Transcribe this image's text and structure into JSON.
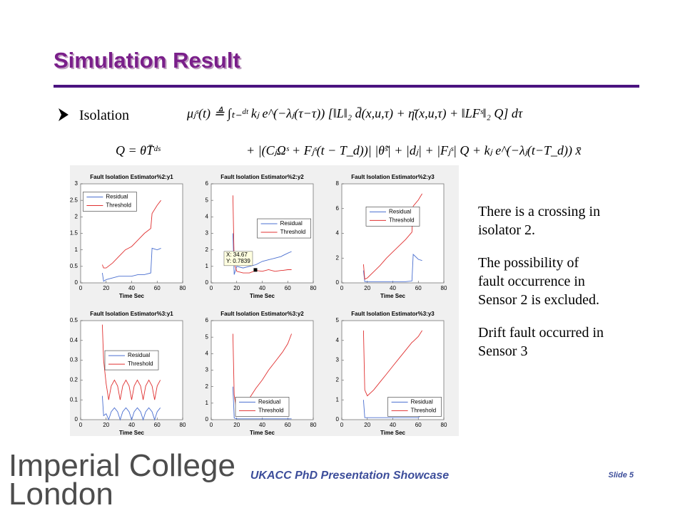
{
  "header": {
    "title": "Simulation Result"
  },
  "bullet": "Isolation",
  "equations": {
    "line1": "μⱼˢ(t) ≜ ∫ₜ₋ᵈᵗ kⱼ e^(−λⱼ(τ−τ)) [‖L‖₂ d̄(x,u,τ) + η̄(x,u,τ) + ‖LFˢ‖₂ Q] dτ",
    "q": "Q = θT̄ᵈˢ",
    "line2": "+ |(CⱼΩˢ + Fⱼˢ(t − T_d))| |θ̃ˢ| + |dⱼ| + |Fⱼˢ| Q + kⱼ e^(−λⱼ(t−T_d)) x̄"
  },
  "notes": [
    [
      "There is a crossing in",
      "isolator 2."
    ],
    [
      "The possibility of",
      "fault occurrence in",
      "Sensor 2 is excluded."
    ],
    [
      "Drift fault occurred in",
      "Sensor 3"
    ]
  ],
  "footer": {
    "logo_line1": "Imperial College",
    "logo_line2": "London",
    "showcase": "UKACC PhD Presentation Showcase",
    "slide": "Slide 5"
  },
  "chart_data": [
    {
      "type": "line",
      "title": "Fault Isolation Estimator%2:y1",
      "x_label": "Time Sec",
      "x": [
        17,
        18,
        20,
        25,
        30,
        35,
        40,
        45,
        50,
        55,
        56,
        60,
        63
      ],
      "series": [
        {
          "name": "Residual",
          "color": "#4a6fd0",
          "values": [
            0.3,
            0.05,
            0.1,
            0.15,
            0.2,
            0.2,
            0.2,
            0.25,
            0.25,
            0.3,
            1.05,
            1.0,
            1.05
          ]
        },
        {
          "name": "Threshold",
          "color": "#e03030",
          "values": [
            0.55,
            0.45,
            0.45,
            0.6,
            0.8,
            1.0,
            1.1,
            1.3,
            1.5,
            1.65,
            2.1,
            2.35,
            2.5
          ]
        }
      ],
      "xlim": [
        0,
        80
      ],
      "xticks": [
        0,
        20,
        40,
        60,
        80
      ],
      "ylim": [
        0,
        3
      ],
      "yticks": [
        0,
        0.5,
        1,
        1.5,
        2,
        2.5,
        3
      ],
      "legend": "upper-left"
    },
    {
      "type": "line",
      "title": "Fault Isolation Estimator%2:y2",
      "x_label": "Time Sec",
      "x": [
        17,
        18,
        20,
        25,
        30,
        35,
        40,
        45,
        50,
        55,
        56,
        60,
        63
      ],
      "series": [
        {
          "name": "Residual",
          "color": "#4a6fd0",
          "values": [
            3,
            0.5,
            1.0,
            0.9,
            1.0,
            1.1,
            1.3,
            1.4,
            1.5,
            1.6,
            1.65,
            1.8,
            1.9
          ]
        },
        {
          "name": "Threshold",
          "color": "#e03030",
          "values": [
            5.3,
            1.2,
            0.7,
            0.6,
            0.6,
            0.75,
            0.7,
            0.8,
            0.7,
            0.75,
            0.75,
            0.8,
            0.8
          ]
        }
      ],
      "annotation": {
        "x": 34.67,
        "y": 0.7839,
        "label_x": "X: 34.67",
        "label_y": "Y: 0.7839"
      },
      "xlim": [
        0,
        80
      ],
      "xticks": [
        0,
        20,
        40,
        60,
        80
      ],
      "ylim": [
        0,
        6
      ],
      "yticks": [
        0,
        1,
        2,
        3,
        4,
        5,
        6
      ],
      "legend": "center-right"
    },
    {
      "type": "line",
      "title": "Fault Isolation Estimator%2:y3",
      "x_label": "Time Sec",
      "x": [
        17,
        18,
        20,
        25,
        30,
        35,
        40,
        45,
        50,
        55,
        56,
        60,
        63
      ],
      "series": [
        {
          "name": "Residual",
          "color": "#4a6fd0",
          "values": [
            1,
            0.1,
            0.1,
            0.1,
            0.1,
            0.1,
            0.1,
            0.1,
            0.1,
            0.15,
            2.3,
            1.9,
            1.8
          ]
        },
        {
          "name": "Threshold",
          "color": "#e03030",
          "values": [
            1.5,
            0.3,
            0.4,
            0.9,
            1.4,
            2.0,
            2.5,
            3.0,
            3.5,
            4.1,
            6.2,
            6.7,
            7.2
          ]
        }
      ],
      "xlim": [
        0,
        80
      ],
      "xticks": [
        0,
        20,
        40,
        60,
        80
      ],
      "ylim": [
        0,
        8
      ],
      "yticks": [
        0,
        2,
        4,
        6,
        8
      ],
      "legend": "upper-center"
    },
    {
      "type": "line",
      "title": "Fault Isolation Estimator%3:y1",
      "x_label": "Time Sec",
      "x": [
        17,
        18,
        20,
        22,
        24,
        26.5,
        29,
        31,
        33,
        35.5,
        38,
        40,
        42,
        44.5,
        47,
        49,
        51,
        53.5,
        56,
        58,
        60,
        62.5
      ],
      "series": [
        {
          "name": "Residual",
          "color": "#4a6fd0",
          "values": [
            0.12,
            0.02,
            0.03,
            0,
            0.04,
            0.06,
            0.04,
            0,
            0.04,
            0.06,
            0.04,
            0,
            0.04,
            0.06,
            0.04,
            0,
            0.04,
            0.06,
            0.04,
            0,
            0.04,
            0.06
          ]
        },
        {
          "name": "Threshold",
          "color": "#e03030",
          "values": [
            0.48,
            0.3,
            0.18,
            0.1,
            0.17,
            0.2,
            0.17,
            0.1,
            0.17,
            0.2,
            0.17,
            0.1,
            0.17,
            0.2,
            0.17,
            0.1,
            0.17,
            0.2,
            0.17,
            0.1,
            0.17,
            0.2
          ]
        }
      ],
      "xlim": [
        0,
        80
      ],
      "xticks": [
        0,
        20,
        40,
        60,
        80
      ],
      "ylim": [
        0,
        0.5
      ],
      "yticks": [
        0,
        0.1,
        0.2,
        0.3,
        0.4,
        0.5
      ],
      "legend": "center"
    },
    {
      "type": "line",
      "title": "Fault Isolation Estimator%3:y2",
      "x_label": "Time Sec",
      "x": [
        17,
        18,
        20,
        25,
        30,
        35,
        40,
        45,
        50,
        55,
        56,
        60,
        63
      ],
      "series": [
        {
          "name": "Residual",
          "color": "#4a6fd0",
          "values": [
            2,
            0.1,
            0.05,
            0.05,
            0.05,
            0.05,
            0.05,
            0.05,
            0.05,
            0.05,
            0.05,
            0.05,
            0.05
          ]
        },
        {
          "name": "Threshold",
          "color": "#e03030",
          "values": [
            5.2,
            1.5,
            0.5,
            0.8,
            1.3,
            1.9,
            2.4,
            3.0,
            3.5,
            4.0,
            4.1,
            4.6,
            5.2
          ]
        }
      ],
      "xlim": [
        0,
        80
      ],
      "xticks": [
        0,
        20,
        40,
        60,
        80
      ],
      "ylim": [
        0,
        6
      ],
      "yticks": [
        0,
        1,
        2,
        3,
        4,
        5,
        6
      ],
      "legend": "lower-center"
    },
    {
      "type": "line",
      "title": "Fault Isolation Estimator%3:y3",
      "x_label": "Time Sec",
      "x": [
        17,
        18,
        20,
        25,
        30,
        35,
        40,
        45,
        50,
        55,
        56,
        60,
        63
      ],
      "series": [
        {
          "name": "Residual",
          "color": "#4a6fd0",
          "values": [
            1,
            0.1,
            0.1,
            0.1,
            0.1,
            0.1,
            0.1,
            0.1,
            0.1,
            0.1,
            0.1,
            0.1,
            0.3
          ]
        },
        {
          "name": "Threshold",
          "color": "#e03030",
          "values": [
            4.5,
            1.5,
            1.2,
            1.5,
            1.9,
            2.3,
            2.7,
            3.1,
            3.5,
            3.9,
            3.95,
            4.2,
            4.5
          ]
        }
      ],
      "xlim": [
        0,
        80
      ],
      "xticks": [
        0,
        20,
        40,
        60,
        80
      ],
      "ylim": [
        0,
        5
      ],
      "yticks": [
        0,
        1,
        2,
        3,
        4,
        5
      ],
      "legend": "lower-right"
    }
  ]
}
